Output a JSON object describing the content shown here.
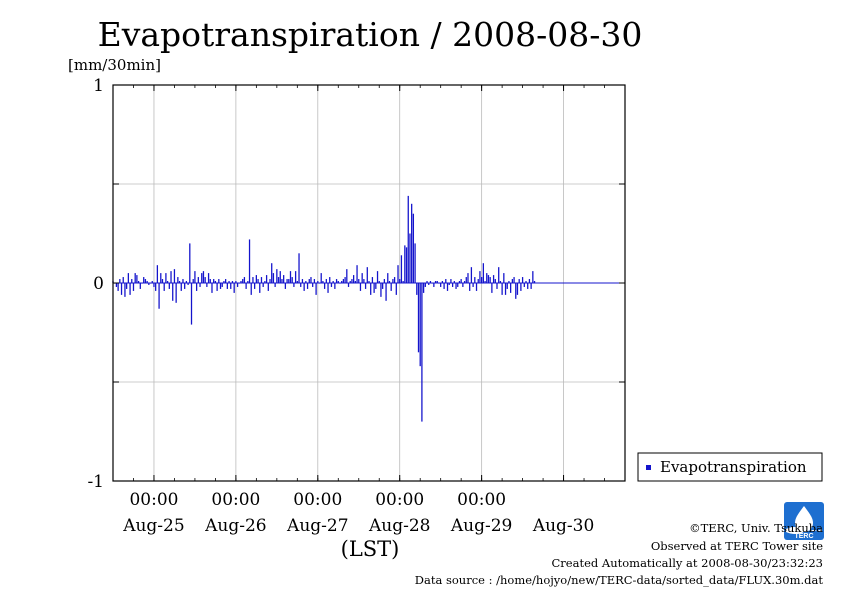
{
  "chart_data": {
    "type": "bar",
    "title": "Evapotranspiration / 2008-08-30",
    "ylabel": "[mm/30min]",
    "xlabel": "(LST)",
    "ylim": [
      -1,
      1
    ],
    "y_ticks": [
      {
        "value": 1,
        "label": "1"
      },
      {
        "value": 0,
        "label": "0"
      },
      {
        "value": -1,
        "label": "-1"
      }
    ],
    "x_range": [
      "2008-08-24T12:00",
      "2008-08-30T18:00"
    ],
    "x_time_labels": [
      {
        "t": "2008-08-25T00:00",
        "label": "00:00"
      },
      {
        "t": "2008-08-26T00:00",
        "label": "00:00"
      },
      {
        "t": "2008-08-27T00:00",
        "label": "00:00"
      },
      {
        "t": "2008-08-28T00:00",
        "label": "00:00"
      },
      {
        "t": "2008-08-29T00:00",
        "label": "00:00"
      }
    ],
    "x_date_labels": [
      {
        "t": "2008-08-25T00:00",
        "label": "Aug-25"
      },
      {
        "t": "2008-08-26T00:00",
        "label": "Aug-26"
      },
      {
        "t": "2008-08-27T00:00",
        "label": "Aug-27"
      },
      {
        "t": "2008-08-28T00:00",
        "label": "Aug-28"
      },
      {
        "t": "2008-08-29T00:00",
        "label": "Aug-29"
      },
      {
        "t": "2008-08-30T00:00",
        "label": "Aug-30"
      }
    ],
    "grid": true,
    "legend": {
      "position": "right",
      "label": "Evapotranspiration"
    },
    "series": [
      {
        "name": "Evapotranspiration",
        "color": "#1414cc",
        "interval_minutes": 30,
        "start": "2008-08-24T12:00",
        "values": [
          0.01,
          0.0,
          -0.02,
          -0.04,
          0.02,
          -0.06,
          0.03,
          -0.07,
          -0.03,
          0.05,
          -0.06,
          0.02,
          -0.04,
          0.05,
          0.04,
          0.01,
          -0.03,
          0.0,
          0.03,
          0.02,
          0.01,
          -0.01,
          0.0,
          0.01,
          -0.02,
          -0.04,
          0.09,
          -0.13,
          0.05,
          0.02,
          -0.04,
          0.05,
          0.01,
          -0.03,
          0.06,
          -0.09,
          0.07,
          -0.1,
          0.03,
          0.01,
          -0.04,
          0.02,
          -0.03,
          0.01,
          -0.01,
          0.2,
          -0.21,
          0.02,
          0.06,
          -0.04,
          0.03,
          -0.02,
          0.05,
          0.06,
          0.03,
          -0.02,
          0.05,
          0.02,
          -0.05,
          0.02,
          0.01,
          -0.04,
          0.02,
          -0.03,
          -0.02,
          0.01,
          0.02,
          -0.03,
          0.01,
          -0.03,
          0.01,
          -0.05,
          0.01,
          -0.02,
          0.0,
          0.01,
          0.02,
          0.03,
          -0.03,
          0.01,
          0.22,
          -0.06,
          0.03,
          -0.03,
          0.04,
          0.02,
          -0.05,
          0.03,
          -0.02,
          0.01,
          0.04,
          -0.04,
          0.02,
          0.1,
          0.05,
          -0.02,
          0.07,
          0.03,
          0.06,
          0.02,
          0.04,
          -0.03,
          0.02,
          0.02,
          0.06,
          0.03,
          -0.02,
          0.06,
          0.01,
          0.15,
          -0.02,
          0.02,
          -0.04,
          0.01,
          -0.03,
          0.02,
          0.03,
          -0.02,
          0.02,
          -0.06,
          0.01,
          0.0,
          0.05,
          0.01,
          -0.03,
          0.02,
          -0.05,
          0.03,
          -0.02,
          0.01,
          -0.03,
          0.02,
          0.01,
          0.0,
          0.01,
          0.02,
          0.03,
          0.07,
          -0.02,
          0.01,
          0.02,
          0.04,
          0.01,
          0.09,
          0.02,
          -0.04,
          0.05,
          0.02,
          -0.03,
          0.08,
          0.01,
          -0.06,
          0.03,
          -0.05,
          -0.03,
          0.06,
          0.01,
          -0.07,
          -0.03,
          0.02,
          -0.09,
          0.05,
          0.01,
          -0.04,
          0.02,
          0.03,
          -0.06,
          0.09,
          0.02,
          0.14,
          0.01,
          0.19,
          0.18,
          0.44,
          0.25,
          0.4,
          0.35,
          0.2,
          -0.06,
          -0.35,
          -0.42,
          -0.7,
          -0.05,
          -0.02,
          0.01,
          -0.01,
          0.01,
          0.0,
          -0.02,
          0.01,
          0.01,
          0.0,
          -0.02,
          0.01,
          -0.03,
          0.02,
          -0.04,
          -0.01,
          0.02,
          -0.02,
          0.01,
          -0.03,
          -0.02,
          0.01,
          0.02,
          -0.02,
          0.01,
          0.03,
          0.05,
          -0.04,
          0.08,
          -0.02,
          0.03,
          -0.04,
          0.02,
          0.06,
          0.03,
          0.1,
          0.01,
          0.05,
          0.04,
          0.03,
          -0.05,
          0.04,
          0.02,
          -0.03,
          0.08,
          0.01,
          -0.06,
          0.05,
          -0.06,
          -0.03,
          0.01,
          -0.05,
          0.02,
          0.03,
          -0.08,
          -0.06,
          0.02,
          -0.04,
          0.03,
          -0.02,
          0.01,
          -0.03,
          0.02,
          -0.03,
          0.06,
          0.01
        ]
      }
    ]
  },
  "credits": {
    "copyright": "©TERC, Univ. Tsukuba",
    "observed": "Observed at TERC Tower site",
    "created": "Created Automatically at 2008-08-30/23:32:23",
    "source": "Data source : /home/hojyo/new/TERC-data/sorted_data/FLUX.30m.dat",
    "logo_text": "TERC"
  }
}
